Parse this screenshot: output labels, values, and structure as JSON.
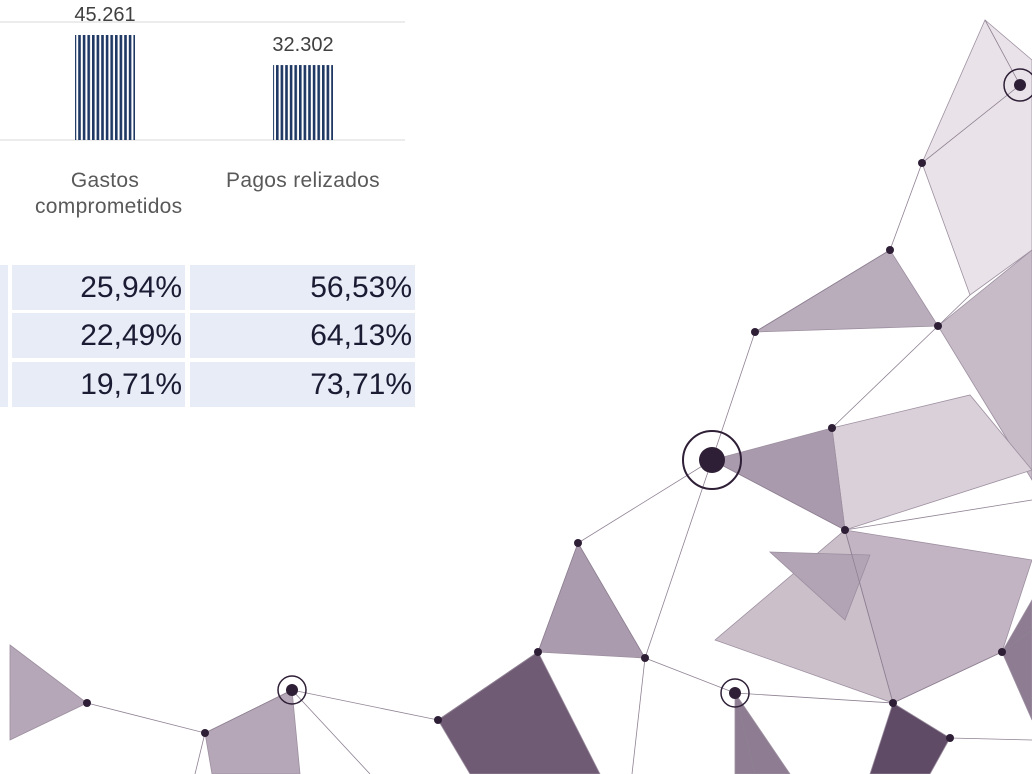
{
  "chart_data": {
    "type": "bar",
    "categories": [
      "Gastos comprometidos",
      "Pagos relizados"
    ],
    "values": [
      45261,
      32302
    ],
    "value_labels": [
      "45.261",
      "32.302"
    ],
    "color": "#1f3864"
  },
  "table": {
    "rows": [
      [
        "25,94%",
        "56,53%"
      ],
      [
        "22,49%",
        "64,13%"
      ],
      [
        "19,71%",
        "73,71%"
      ]
    ]
  }
}
